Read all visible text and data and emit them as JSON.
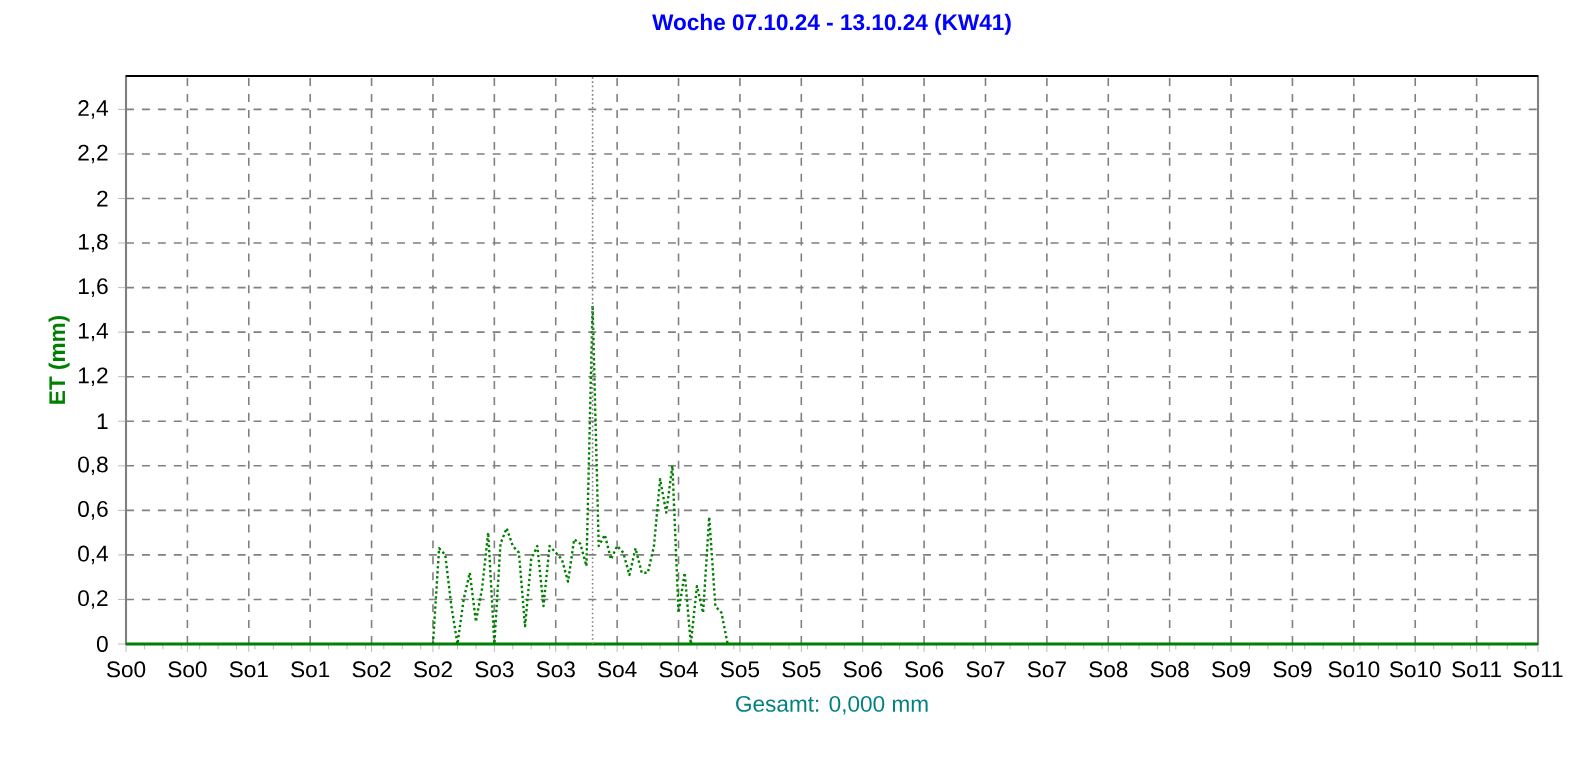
{
  "chart_data": {
    "type": "line",
    "title": "Woche 07.10.24 - 13.10.24 (KW41)",
    "ylabel": "ET  (mm)",
    "annotations": [
      "Gesamt: 0,000 mm"
    ],
    "categories": [
      "So0",
      null,
      null,
      null,
      null,
      null,
      null,
      null,
      null,
      null,
      "So0",
      null,
      null,
      null,
      null,
      null,
      null,
      null,
      null,
      null,
      "So1",
      null,
      null,
      null,
      null,
      null,
      null,
      null,
      null,
      null,
      "So1",
      null,
      null,
      null,
      null,
      null,
      null,
      null,
      null,
      null,
      "So2",
      null,
      null,
      null,
      null,
      null,
      null,
      null,
      null,
      null,
      "So2",
      null,
      null,
      null,
      null,
      null,
      null,
      null,
      null,
      null,
      "So3",
      null,
      null,
      null,
      null,
      null,
      null,
      null,
      null,
      null,
      "So3",
      null,
      null,
      null,
      null,
      null,
      null,
      null,
      null,
      null,
      "So4",
      null,
      null,
      null,
      null,
      null,
      null,
      null,
      null,
      null,
      "So4",
      null,
      null,
      null,
      null,
      null,
      null,
      null,
      null,
      null,
      "So5",
      null,
      null,
      null,
      null,
      null,
      null,
      null,
      null,
      null,
      "So5",
      null,
      null,
      null,
      null,
      null,
      null,
      null,
      null,
      null,
      "So6",
      null,
      null,
      null,
      null,
      null,
      null,
      null,
      null,
      null,
      "So6",
      null,
      null,
      null,
      null,
      null,
      null,
      null,
      null,
      null,
      "So7",
      null,
      null,
      null,
      null,
      null,
      null,
      null,
      null,
      null,
      "So7",
      null,
      null,
      null,
      null,
      null,
      null,
      null,
      null,
      null,
      "So8",
      null,
      null,
      null,
      null,
      null,
      null,
      null,
      null,
      null,
      "So8",
      null,
      null,
      null,
      null,
      null,
      null,
      null,
      null,
      null,
      "So9",
      null,
      null,
      null,
      null,
      null,
      null,
      null,
      null,
      null,
      "So9",
      null,
      null,
      null,
      null,
      null,
      null,
      null,
      null,
      null,
      "So10",
      null,
      null,
      null,
      null,
      null,
      null,
      null,
      null,
      null,
      "So10",
      null,
      null,
      null,
      null,
      null,
      null,
      null,
      null,
      null,
      "So11",
      null,
      null,
      null,
      null,
      null,
      null,
      null,
      null,
      null,
      "So11"
    ],
    "ylim": [
      0,
      2.55
    ],
    "yticks": [
      0,
      {
        "value": 0.2,
        "label": "0,2"
      },
      {
        "value": 0.4,
        "label": "0,4"
      },
      {
        "value": 0.6,
        "label": "0,6"
      },
      {
        "value": 0.8,
        "label": "0,8"
      },
      1,
      {
        "value": 1.2,
        "label": "1,2"
      },
      {
        "value": 1.4,
        "label": "1,4"
      },
      {
        "value": 1.6,
        "label": "1,6"
      },
      {
        "value": 1.8,
        "label": "1,8"
      },
      2,
      {
        "value": 2.2,
        "label": "2,2"
      },
      {
        "value": 2.4,
        "label": "2,4"
      }
    ],
    "grid": true,
    "series": [
      {
        "color": "#008000",
        "line_style": "dotted",
        "values": [
          null,
          null,
          null,
          null,
          null,
          null,
          null,
          null,
          null,
          null,
          null,
          null,
          null,
          null,
          null,
          null,
          null,
          null,
          null,
          null,
          null,
          null,
          null,
          null,
          null,
          null,
          null,
          null,
          null,
          null,
          null,
          null,
          null,
          null,
          null,
          null,
          null,
          null,
          null,
          null,
          null,
          null,
          null,
          null,
          null,
          null,
          null,
          null,
          null,
          null,
          0,
          0.43,
          0.4,
          0.17,
          0,
          0.2,
          0.32,
          0.1,
          0.25,
          0.5,
          0,
          0.45,
          0.52,
          0.44,
          0.41,
          0.08,
          0.38,
          0.44,
          0.17,
          0.44,
          0.41,
          0.38,
          0.28,
          0.47,
          0.45,
          0.35,
          1.52,
          0.44,
          0.49,
          0.38,
          0.44,
          0.41,
          0.31,
          0.43,
          0.32,
          0.32,
          0.44,
          0.74,
          0.59,
          0.8,
          0.14,
          0.32,
          0,
          0.26,
          0.14,
          0.57,
          0.17,
          0.14,
          0,
          null,
          null,
          null,
          null,
          null,
          null,
          null,
          null,
          null,
          null,
          null,
          null,
          null,
          null,
          null,
          null,
          null,
          null,
          null,
          null,
          null,
          null,
          null,
          null,
          null,
          null,
          null,
          null,
          null,
          null,
          null,
          null,
          null,
          null,
          null,
          null,
          null,
          null,
          null,
          null,
          null,
          null,
          null,
          null,
          null,
          null,
          null,
          null,
          null,
          null,
          null,
          null,
          null,
          null,
          null,
          null,
          null,
          null,
          null,
          null,
          null,
          null,
          null,
          null,
          null,
          null,
          null,
          null,
          null,
          null,
          null,
          null,
          null,
          null,
          null,
          null,
          null,
          null,
          null,
          null,
          null,
          null,
          null,
          null,
          null,
          null,
          null,
          null,
          null,
          null,
          null,
          null,
          null,
          null,
          null,
          null,
          null,
          null,
          null,
          null,
          null,
          null,
          null,
          null,
          null,
          null,
          null,
          null,
          null,
          null,
          null,
          null,
          null,
          null,
          null,
          null,
          null,
          null,
          null,
          null,
          null,
          null,
          null,
          null,
          null,
          null,
          null,
          null,
          null,
          null,
          null,
          null
        ]
      },
      {
        "color": "#008000",
        "line_style": "solid",
        "values": [
          0,
          0,
          0,
          0,
          0,
          0,
          0,
          0,
          0,
          0,
          0,
          0,
          0,
          0,
          0,
          0,
          0,
          0,
          0,
          0,
          0,
          0,
          0,
          0,
          0,
          0,
          0,
          0,
          0,
          0,
          0,
          0,
          0,
          0,
          0,
          0,
          0,
          0,
          0,
          0,
          0,
          0,
          0,
          0,
          0,
          0,
          0,
          0,
          0,
          0,
          0,
          0,
          0,
          0,
          0,
          0,
          0,
          0,
          0,
          0,
          0,
          0,
          0,
          0,
          0,
          0,
          0,
          0,
          0,
          0,
          0,
          0,
          0,
          0,
          0,
          0,
          0,
          0,
          0,
          0,
          0,
          0,
          0,
          0,
          0,
          0,
          0,
          0,
          0,
          0,
          0,
          0,
          0,
          0,
          0,
          0,
          0,
          0,
          0,
          0,
          0,
          0,
          0,
          0,
          0,
          0,
          0,
          0,
          0,
          0,
          0,
          0,
          0,
          0,
          0,
          0,
          0,
          0,
          0,
          0,
          0,
          0,
          0,
          0,
          0,
          0,
          0,
          0,
          0,
          0,
          0,
          0,
          0,
          0,
          0,
          0,
          0,
          0,
          0,
          0,
          0,
          0,
          0,
          0,
          0,
          0,
          0,
          0,
          0,
          0,
          0,
          0,
          0,
          0,
          0,
          0,
          0,
          0,
          0,
          0,
          0,
          0,
          0,
          0,
          0,
          0,
          0,
          0,
          0,
          0,
          0,
          0,
          0,
          0,
          0,
          0,
          0,
          0,
          0,
          0,
          0,
          0,
          0,
          0,
          0,
          0,
          0,
          0,
          0,
          0,
          0,
          0,
          0,
          0,
          0,
          0,
          0,
          0,
          0,
          0,
          0,
          0,
          0,
          0,
          0,
          0,
          0,
          0,
          0,
          0,
          0,
          0,
          0,
          0,
          0,
          0,
          0,
          0,
          0,
          0,
          0,
          0,
          0,
          0,
          0,
          0,
          0,
          0,
          0,
          0,
          0
        ]
      }
    ]
  }
}
